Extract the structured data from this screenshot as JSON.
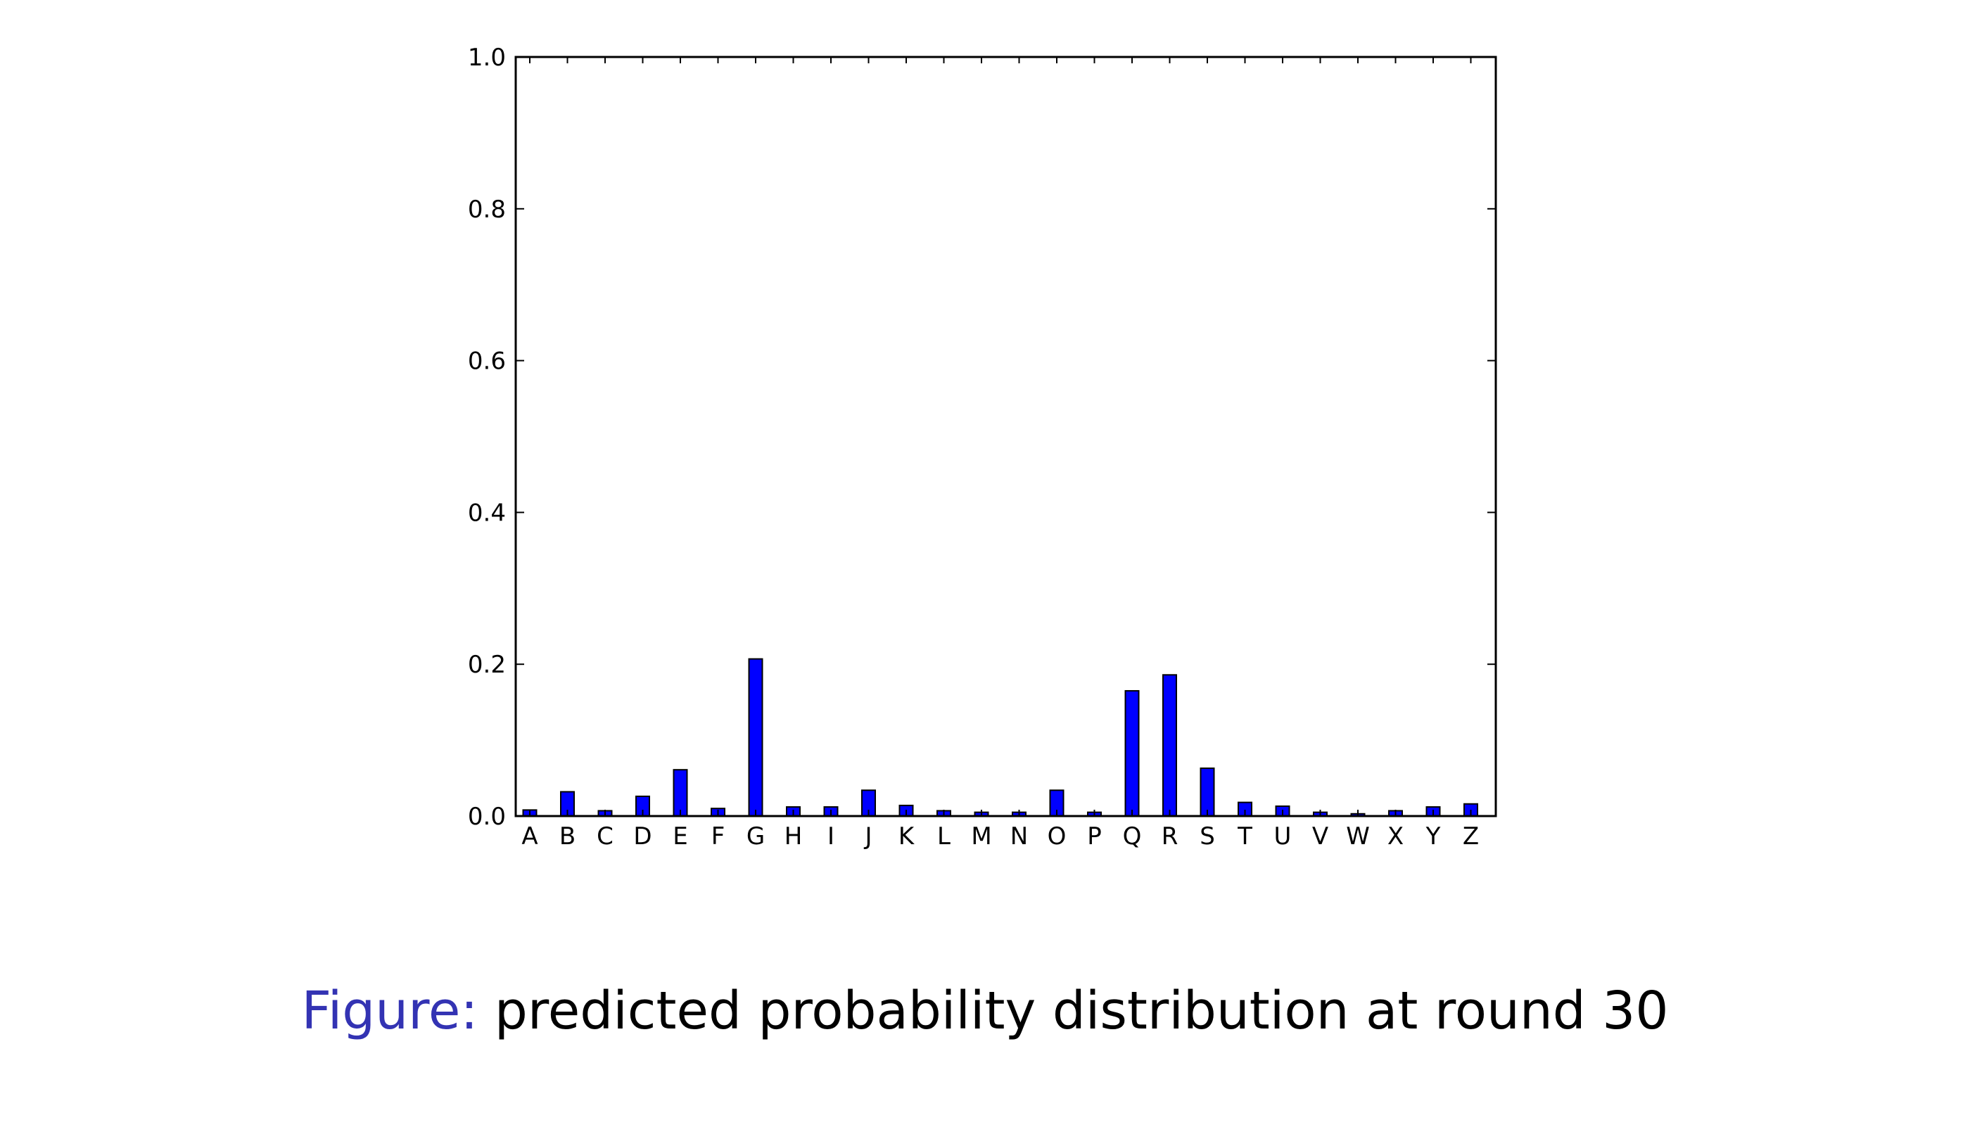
{
  "chart_data": {
    "type": "bar",
    "title": "",
    "xlabel": "",
    "ylabel": "",
    "ylim": [
      0.0,
      1.0
    ],
    "yticks": [
      "0.0",
      "0.2",
      "0.4",
      "0.6",
      "0.8",
      "1.0"
    ],
    "ytick_values": [
      0.0,
      0.2,
      0.4,
      0.6,
      0.8,
      1.0
    ],
    "categories": [
      "A",
      "B",
      "C",
      "D",
      "E",
      "F",
      "G",
      "H",
      "I",
      "J",
      "K",
      "L",
      "M",
      "N",
      "O",
      "P",
      "Q",
      "R",
      "S",
      "T",
      "U",
      "V",
      "W",
      "X",
      "Y",
      "Z"
    ],
    "values": [
      0.008,
      0.032,
      0.007,
      0.026,
      0.061,
      0.01,
      0.207,
      0.012,
      0.012,
      0.034,
      0.014,
      0.007,
      0.005,
      0.005,
      0.034,
      0.005,
      0.165,
      0.186,
      0.063,
      0.018,
      0.013,
      0.005,
      0.003,
      0.007,
      0.012,
      0.016
    ],
    "bar_color": "#0000ff",
    "bar_edge_color": "#000000",
    "grid": false,
    "legend": "none"
  },
  "caption": {
    "prefix": "Figure:",
    "text": "predicted probability distribution at round 30",
    "prefix_color": "#3333b3"
  }
}
